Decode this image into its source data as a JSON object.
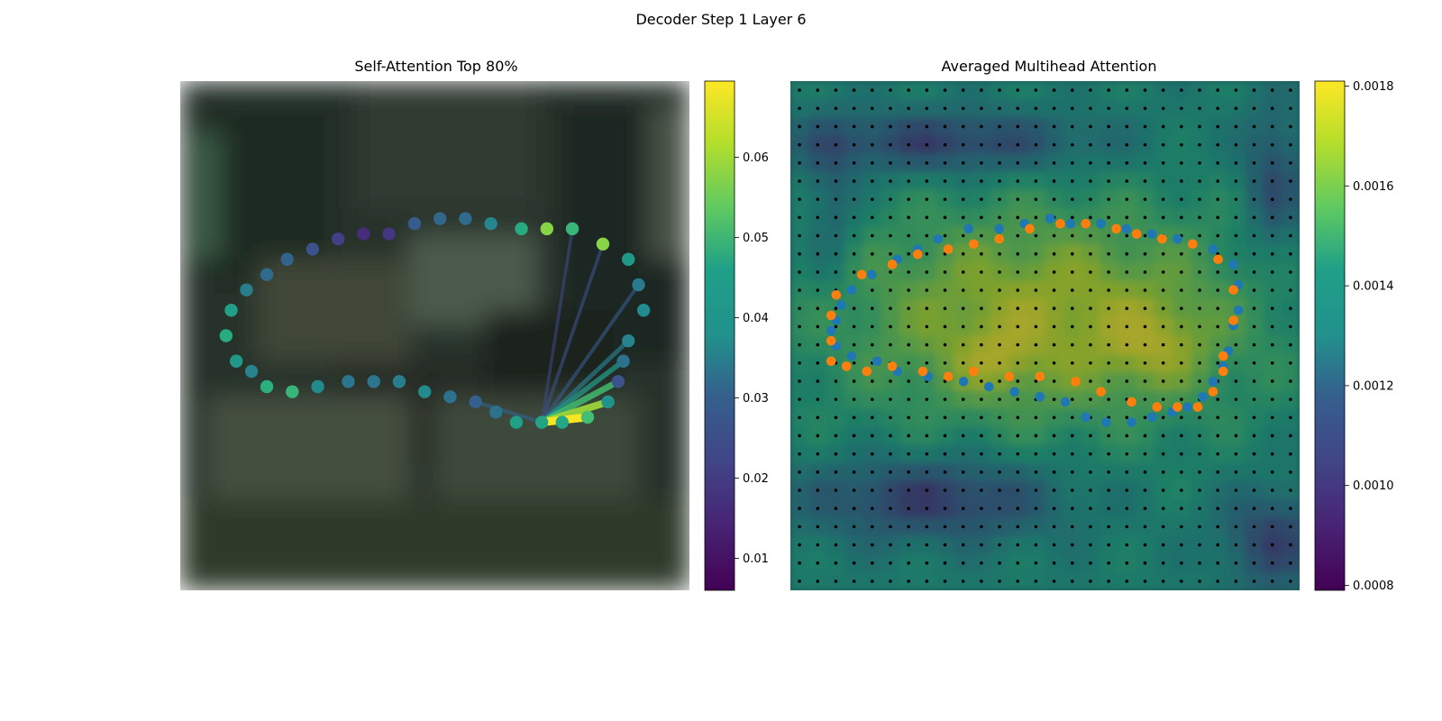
{
  "figure": {
    "title": "Decoder Step 1 Layer 6"
  },
  "chart_data": [
    {
      "type": "scatter",
      "title": "Self-Attention Top 80%",
      "description_of_marks": "contour points colored by attention weight over a blurred photo",
      "colormap": "viridis",
      "colorbar": {
        "range": [
          0.006,
          0.0695
        ],
        "ticks": [
          "0.01",
          "0.02",
          "0.03",
          "0.04",
          "0.05",
          "0.06"
        ],
        "tick_values": [
          0.01,
          0.02,
          0.03,
          0.04,
          0.05,
          0.06
        ]
      },
      "points": [
        {
          "x": 0.09,
          "y": 0.5,
          "v": 0.045
        },
        {
          "x": 0.1,
          "y": 0.45,
          "v": 0.042
        },
        {
          "x": 0.13,
          "y": 0.41,
          "v": 0.033
        },
        {
          "x": 0.17,
          "y": 0.38,
          "v": 0.028
        },
        {
          "x": 0.21,
          "y": 0.35,
          "v": 0.026
        },
        {
          "x": 0.26,
          "y": 0.33,
          "v": 0.022
        },
        {
          "x": 0.31,
          "y": 0.31,
          "v": 0.018
        },
        {
          "x": 0.36,
          "y": 0.3,
          "v": 0.014
        },
        {
          "x": 0.41,
          "y": 0.3,
          "v": 0.016
        },
        {
          "x": 0.46,
          "y": 0.28,
          "v": 0.024
        },
        {
          "x": 0.51,
          "y": 0.27,
          "v": 0.027
        },
        {
          "x": 0.56,
          "y": 0.27,
          "v": 0.028
        },
        {
          "x": 0.61,
          "y": 0.28,
          "v": 0.035
        },
        {
          "x": 0.67,
          "y": 0.29,
          "v": 0.045
        },
        {
          "x": 0.72,
          "y": 0.29,
          "v": 0.058
        },
        {
          "x": 0.77,
          "y": 0.29,
          "v": 0.048
        },
        {
          "x": 0.83,
          "y": 0.32,
          "v": 0.058
        },
        {
          "x": 0.88,
          "y": 0.35,
          "v": 0.04
        },
        {
          "x": 0.9,
          "y": 0.4,
          "v": 0.032
        },
        {
          "x": 0.91,
          "y": 0.45,
          "v": 0.036
        },
        {
          "x": 0.88,
          "y": 0.51,
          "v": 0.034
        },
        {
          "x": 0.87,
          "y": 0.55,
          "v": 0.03
        },
        {
          "x": 0.86,
          "y": 0.59,
          "v": 0.022
        },
        {
          "x": 0.84,
          "y": 0.63,
          "v": 0.038
        },
        {
          "x": 0.8,
          "y": 0.66,
          "v": 0.05
        },
        {
          "x": 0.75,
          "y": 0.67,
          "v": 0.044
        },
        {
          "x": 0.71,
          "y": 0.67,
          "v": 0.043
        },
        {
          "x": 0.66,
          "y": 0.67,
          "v": 0.042
        },
        {
          "x": 0.62,
          "y": 0.65,
          "v": 0.03
        },
        {
          "x": 0.58,
          "y": 0.63,
          "v": 0.025
        },
        {
          "x": 0.53,
          "y": 0.62,
          "v": 0.03
        },
        {
          "x": 0.48,
          "y": 0.61,
          "v": 0.036
        },
        {
          "x": 0.43,
          "y": 0.59,
          "v": 0.033
        },
        {
          "x": 0.38,
          "y": 0.59,
          "v": 0.031
        },
        {
          "x": 0.33,
          "y": 0.59,
          "v": 0.031
        },
        {
          "x": 0.27,
          "y": 0.6,
          "v": 0.036
        },
        {
          "x": 0.22,
          "y": 0.61,
          "v": 0.048
        },
        {
          "x": 0.17,
          "y": 0.6,
          "v": 0.046
        },
        {
          "x": 0.14,
          "y": 0.57,
          "v": 0.034
        },
        {
          "x": 0.11,
          "y": 0.55,
          "v": 0.04
        }
      ],
      "edges": [
        {
          "from": 26,
          "to": 24,
          "v": 0.069
        },
        {
          "from": 26,
          "to": 23,
          "v": 0.06
        },
        {
          "from": 26,
          "to": 22,
          "v": 0.05
        },
        {
          "from": 26,
          "to": 21,
          "v": 0.04
        },
        {
          "from": 26,
          "to": 20,
          "v": 0.033
        },
        {
          "from": 26,
          "to": 29,
          "v": 0.026
        },
        {
          "from": 26,
          "to": 18,
          "v": 0.024
        },
        {
          "from": 26,
          "to": 16,
          "v": 0.022
        },
        {
          "from": 26,
          "to": 15,
          "v": 0.02
        }
      ]
    },
    {
      "type": "heatmap",
      "title": "Averaged Multihead Attention",
      "colormap": "viridis",
      "colorbar": {
        "range": [
          0.00079,
          0.00181
        ],
        "ticks": [
          "0.0008",
          "0.0010",
          "0.0012",
          "0.0014",
          "0.0016",
          "0.0018"
        ],
        "tick_values": [
          0.0008,
          0.001,
          0.0012,
          0.0014,
          0.0016,
          0.0018
        ]
      },
      "grid_size": [
        28,
        28
      ],
      "blue_points": [
        [
          0.09,
          0.47
        ],
        [
          0.1,
          0.44
        ],
        [
          0.12,
          0.41
        ],
        [
          0.16,
          0.38
        ],
        [
          0.21,
          0.35
        ],
        [
          0.25,
          0.33
        ],
        [
          0.29,
          0.31
        ],
        [
          0.35,
          0.29
        ],
        [
          0.41,
          0.29
        ],
        [
          0.46,
          0.28
        ],
        [
          0.51,
          0.27
        ],
        [
          0.55,
          0.28
        ],
        [
          0.61,
          0.28
        ],
        [
          0.66,
          0.29
        ],
        [
          0.71,
          0.3
        ],
        [
          0.76,
          0.31
        ],
        [
          0.83,
          0.33
        ],
        [
          0.87,
          0.36
        ],
        [
          0.88,
          0.4
        ],
        [
          0.88,
          0.45
        ],
        [
          0.87,
          0.48
        ],
        [
          0.86,
          0.53
        ],
        [
          0.85,
          0.56
        ],
        [
          0.83,
          0.59
        ],
        [
          0.81,
          0.62
        ],
        [
          0.78,
          0.64
        ],
        [
          0.75,
          0.65
        ],
        [
          0.71,
          0.66
        ],
        [
          0.67,
          0.67
        ],
        [
          0.62,
          0.67
        ],
        [
          0.58,
          0.66
        ],
        [
          0.54,
          0.63
        ],
        [
          0.49,
          0.62
        ],
        [
          0.44,
          0.61
        ],
        [
          0.39,
          0.6
        ],
        [
          0.34,
          0.59
        ],
        [
          0.27,
          0.58
        ],
        [
          0.21,
          0.57
        ],
        [
          0.17,
          0.55
        ],
        [
          0.12,
          0.54
        ],
        [
          0.09,
          0.52
        ],
        [
          0.08,
          0.49
        ]
      ],
      "orange_points": [
        [
          0.08,
          0.51
        ],
        [
          0.08,
          0.46
        ],
        [
          0.09,
          0.42
        ],
        [
          0.14,
          0.38
        ],
        [
          0.2,
          0.36
        ],
        [
          0.25,
          0.34
        ],
        [
          0.31,
          0.33
        ],
        [
          0.36,
          0.32
        ],
        [
          0.41,
          0.31
        ],
        [
          0.47,
          0.29
        ],
        [
          0.53,
          0.28
        ],
        [
          0.58,
          0.28
        ],
        [
          0.64,
          0.29
        ],
        [
          0.68,
          0.3
        ],
        [
          0.73,
          0.31
        ],
        [
          0.79,
          0.32
        ],
        [
          0.84,
          0.35
        ],
        [
          0.87,
          0.41
        ],
        [
          0.87,
          0.47
        ],
        [
          0.85,
          0.54
        ],
        [
          0.85,
          0.57
        ],
        [
          0.83,
          0.61
        ],
        [
          0.8,
          0.64
        ],
        [
          0.76,
          0.64
        ],
        [
          0.72,
          0.64
        ],
        [
          0.67,
          0.63
        ],
        [
          0.61,
          0.61
        ],
        [
          0.56,
          0.59
        ],
        [
          0.49,
          0.58
        ],
        [
          0.43,
          0.58
        ],
        [
          0.36,
          0.57
        ],
        [
          0.31,
          0.58
        ],
        [
          0.26,
          0.57
        ],
        [
          0.2,
          0.56
        ],
        [
          0.15,
          0.57
        ],
        [
          0.11,
          0.56
        ],
        [
          0.08,
          0.55
        ]
      ]
    }
  ]
}
